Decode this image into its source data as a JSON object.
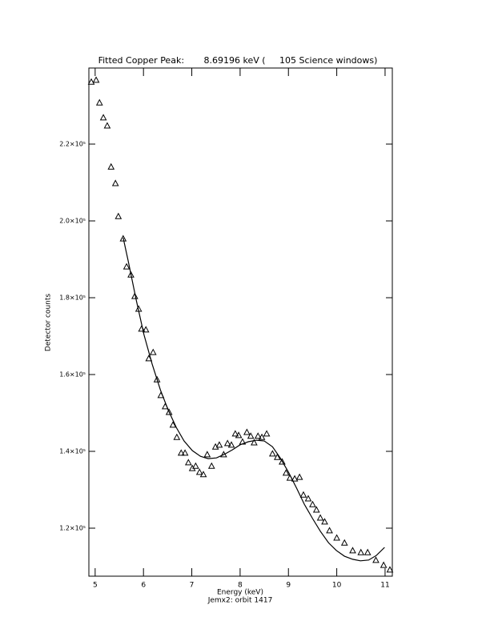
{
  "chart_data": {
    "type": "scatter",
    "title": "Fitted Copper Peak:       8.69196 keV (     105 Science windows)",
    "x_label": "Energy (keV)",
    "caption": "Jemx2: orbit 1417",
    "y_label": "Detector counts",
    "xlim": [
      4.87,
      11.15
    ],
    "ylim": [
      107500,
      239800
    ],
    "xticks": [
      5,
      6,
      7,
      8,
      9,
      10,
      11
    ],
    "yticks": [
      {
        "value": 120000,
        "label": "1.2×10⁵"
      },
      {
        "value": 140000,
        "label": "1.4×10⁵"
      },
      {
        "value": 160000,
        "label": "1.6×10⁵"
      },
      {
        "value": 180000,
        "label": "1.8×10⁵"
      },
      {
        "value": 200000,
        "label": "2.0×10⁵"
      },
      {
        "value": 220000,
        "label": "2.2×10⁵"
      }
    ],
    "series": [
      {
        "type": "scatter",
        "marker": "triangle",
        "color": "#000000",
        "x": [
          4.92,
          5.02,
          5.09,
          5.17,
          5.25,
          5.33,
          5.42,
          5.48,
          5.58,
          5.65,
          5.74,
          5.82,
          5.9,
          5.96,
          6.05,
          6.11,
          6.2,
          6.28,
          6.36,
          6.45,
          6.53,
          6.61,
          6.69,
          6.78,
          6.86,
          6.93,
          7.01,
          7.08,
          7.16,
          7.24,
          7.32,
          7.41,
          7.49,
          7.57,
          7.66,
          7.74,
          7.82,
          7.9,
          7.97,
          8.05,
          8.14,
          8.22,
          8.29,
          8.37,
          8.45,
          8.55,
          8.67,
          8.77,
          8.87,
          8.95,
          9.03,
          9.13,
          9.23,
          9.31,
          9.41,
          9.5,
          9.58,
          9.66,
          9.75,
          9.85,
          10.0,
          10.16,
          10.33,
          10.5,
          10.64,
          10.81,
          10.97,
          11.1
        ],
        "values": [
          236200,
          236700,
          230800,
          226900,
          224800,
          214100,
          209800,
          201200,
          195400,
          188100,
          186000,
          180400,
          177100,
          171900,
          171700,
          164200,
          165800,
          158700,
          154600,
          151700,
          150200,
          146900,
          143700,
          139600,
          139600,
          137100,
          135600,
          136200,
          134600,
          134000,
          139200,
          136200,
          141200,
          141700,
          139200,
          142100,
          141700,
          144600,
          144200,
          142500,
          145000,
          144000,
          142300,
          144000,
          143700,
          144600,
          139400,
          138500,
          137300,
          134400,
          133100,
          132900,
          133300,
          128700,
          127700,
          126200,
          124800,
          122700,
          121700,
          119400,
          117500,
          116200,
          114200,
          113700,
          113700,
          111700,
          110400,
          109200
        ]
      },
      {
        "type": "line",
        "color": "#000000",
        "x": [
          5.58,
          5.68,
          5.85,
          6.01,
          6.18,
          6.35,
          6.51,
          6.68,
          6.84,
          7.01,
          7.18,
          7.34,
          7.51,
          7.67,
          7.84,
          8.0,
          8.17,
          8.34,
          8.5,
          8.67,
          8.83,
          9.0,
          9.17,
          9.33,
          9.5,
          9.66,
          9.83,
          9.99,
          10.16,
          10.33,
          10.49,
          10.66,
          10.82,
          10.99
        ],
        "values": [
          195600,
          189800,
          179400,
          170400,
          162700,
          156000,
          150800,
          146200,
          142700,
          140200,
          138700,
          138100,
          138300,
          139200,
          140400,
          141700,
          142500,
          142900,
          142700,
          141200,
          138300,
          134600,
          130400,
          126200,
          122500,
          119200,
          116200,
          114200,
          112700,
          111900,
          111500,
          111700,
          112900,
          115000
        ]
      }
    ]
  }
}
